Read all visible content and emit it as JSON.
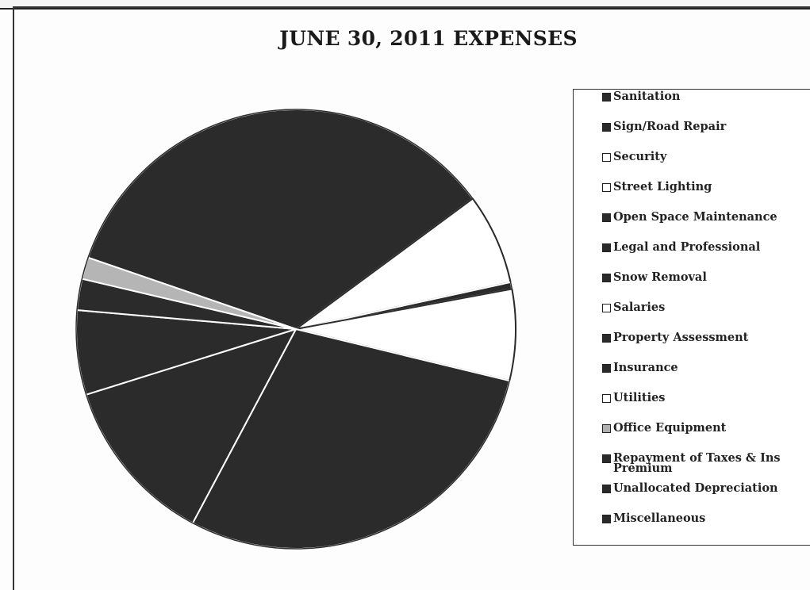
{
  "chart_data": {
    "type": "pie",
    "title": "JUNE 30, 2011 EXPENSES",
    "legend_position": "right",
    "legend": [
      {
        "name": "Sanitation",
        "swatch": "dark"
      },
      {
        "name": "Sign/Road Repair",
        "swatch": "dark"
      },
      {
        "name": "Security",
        "swatch": "light"
      },
      {
        "name": "Street Lighting",
        "swatch": "light"
      },
      {
        "name": "Open Space Maintenance",
        "swatch": "dark"
      },
      {
        "name": "Legal and Professional",
        "swatch": "dark"
      },
      {
        "name": "Snow Removal",
        "swatch": "dark"
      },
      {
        "name": "Salaries",
        "swatch": "light"
      },
      {
        "name": "Property Assessment",
        "swatch": "dark"
      },
      {
        "name": "Insurance",
        "swatch": "dark"
      },
      {
        "name": "Utilities",
        "swatch": "light"
      },
      {
        "name": "Office Equipment",
        "swatch": "dotted"
      },
      {
        "name": "Repayment of Taxes & Ins Premium",
        "swatch": "dark"
      },
      {
        "name": "Unallocated Depreciation",
        "swatch": "dark"
      },
      {
        "name": "Miscellaneous",
        "swatch": "dark"
      }
    ],
    "slices_percent": [
      {
        "color": "#2b2b2b",
        "value": 34.6
      },
      {
        "color": "#ffffff",
        "value": 6.7
      },
      {
        "color": "#2b2b2b",
        "value": 0.5
      },
      {
        "color": "#ffffff",
        "value": 6.7
      },
      {
        "color": "#2b2b2b",
        "value": 29.0
      },
      {
        "color": "#2b2b2b",
        "value": 12.4
      },
      {
        "color": "#2b2b2b",
        "value": 6.2
      },
      {
        "color": "#2b2b2b",
        "value": 2.3
      },
      {
        "color": "#b5b5b5",
        "value": 1.6
      }
    ],
    "colors": {
      "dark": "#2b2b2b",
      "light": "#ffffff",
      "dotted": "#b5b5b5",
      "separator": "#ffffff"
    }
  }
}
